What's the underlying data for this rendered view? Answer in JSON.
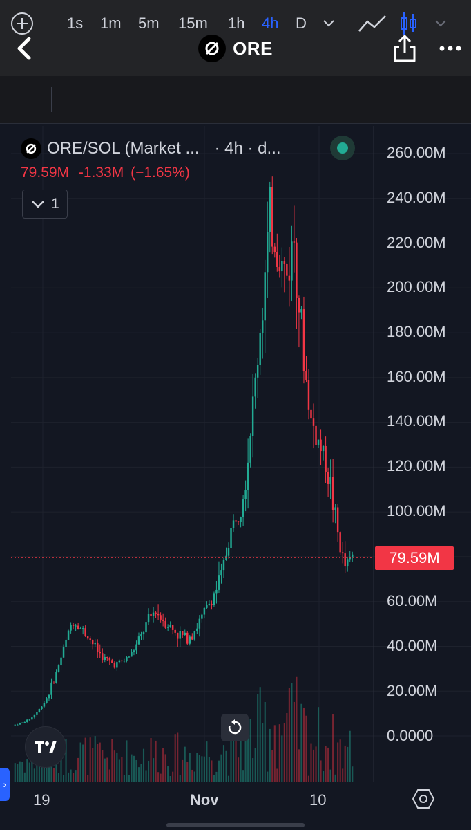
{
  "header": {
    "title": "ORE"
  },
  "toolbar": {
    "intervals": [
      "1s",
      "1m",
      "5m",
      "15m",
      "1h",
      "4h",
      "D"
    ],
    "active_interval": "4h",
    "accent_color": "#2962ff"
  },
  "legend": {
    "symbol": "ORE/SOL (Market ...",
    "interval_info": "· 4h · d...",
    "last_value": "79.59M",
    "change": "-1.33M",
    "change_pct": "(−1.65%)",
    "collapse_count": "1",
    "change_color": "#f23645"
  },
  "price_axis": {
    "labels": [
      "260.00M",
      "240.00M",
      "220.00M",
      "200.00M",
      "180.00M",
      "160.00M",
      "140.00M",
      "120.00M",
      "100.00M",
      "60.00M",
      "40.00M",
      "20.00M",
      "0.0000"
    ],
    "current_price_label": "79.59M"
  },
  "time_axis": {
    "labels": [
      "19",
      "Nov",
      "10"
    ]
  },
  "colors": {
    "up": "#22ab94",
    "down": "#f23645",
    "background": "#131722",
    "grid": "#1e222d"
  },
  "icons": {
    "back": "chevron-left-icon",
    "share": "share-icon",
    "more": "more-horizontal-icon",
    "add": "plus-circle-icon",
    "line_chart": "line-chart-icon",
    "candles": "candlestick-icon",
    "reset": "reset-icon",
    "settings": "settings-hexagon-icon",
    "tradingview": "tradingview-logo-icon"
  },
  "chart_data": {
    "type": "candlestick",
    "ylim": [
      0,
      260000000
    ],
    "x_tick_labels": [
      "19",
      "Nov",
      "10"
    ],
    "last_price": 79590000,
    "series": [
      {
        "values": [
          5,
          6,
          8,
          12,
          18,
          28,
          40,
          52,
          48,
          44,
          38,
          34,
          32,
          33,
          36,
          42,
          50,
          56,
          52,
          48,
          45,
          44,
          48,
          55,
          62,
          70,
          88,
          100,
          115,
          150,
          190,
          230,
          215,
          205,
          225,
          170,
          140,
          130,
          120,
          95,
          75,
          80
        ]
      }
    ]
  }
}
